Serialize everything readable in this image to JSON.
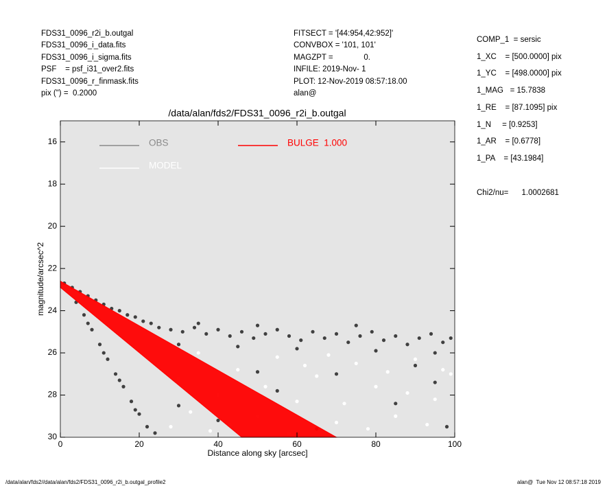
{
  "header": {
    "left": [
      "FDS31_0096_r2i_b.outgal",
      "FDS31_0096_i_data.fits",
      "FDS31_0096_i_sigma.fits",
      "PSF    = psf_i31_over2.fits",
      "FDS31_0096_r_finmask.fits",
      "pix (\") =  0.2000"
    ],
    "middle": [
      "FITSECT = '[44:954,42:952]'",
      "CONVBOX = '101, 101'",
      "MAGZPT =              0.",
      "INFILE: 2019-Nov- 1",
      "PLOT: 12-Nov-2019 08:57:18.00",
      "alan@"
    ],
    "right": [
      "COMP_1  = sersic",
      "1_XC    = [500.0000] pix",
      "1_YC    = [498.0000] pix",
      "1_MAG   = 15.7838",
      "1_RE    = [87.1095] pix",
      "1_N     = [0.9253]",
      "1_AR    = [0.6778]",
      "1_PA    = [43.1984]"
    ],
    "chi2": "Chi2/nu=      1.0002681"
  },
  "footer": {
    "left": "/data/alan/fds2//data/alan/fds2/FDS31_0096_r2i_b.outgal_profile2",
    "right": "alan@  Tue Nov 12 08:57:18 2019"
  },
  "chart_data": {
    "type": "scatter",
    "title": "/data/alan/fds2/FDS31_0096_r2i_b.outgal",
    "x_label": "Distance along sky [arcsec]",
    "y_label": "magnitude/arcsec^2",
    "xlim": [
      0,
      100
    ],
    "ylim": [
      15,
      30
    ],
    "xticks": [
      0,
      20,
      40,
      60,
      80,
      100
    ],
    "yticks": [
      16,
      18,
      20,
      22,
      24,
      26,
      28,
      30
    ],
    "background": "#e5e5e5",
    "legend": "upper left",
    "series": [
      {
        "name": "OBS",
        "color": "#404040",
        "legend_color": "#8a8a8a",
        "kind": "points",
        "x": [
          1,
          3,
          5,
          7,
          9,
          11,
          13,
          15,
          17,
          19,
          21,
          23,
          25,
          28,
          31,
          34,
          37,
          40,
          43,
          46,
          49,
          52,
          55,
          58,
          61,
          64,
          67,
          70,
          73,
          76,
          79,
          82,
          85,
          88,
          91,
          94,
          97,
          99,
          30,
          45,
          60,
          80,
          95,
          35,
          50,
          75,
          4,
          6,
          8,
          10,
          12,
          14,
          16,
          18,
          20,
          22,
          24,
          7,
          11,
          15,
          19,
          30,
          40,
          55,
          70,
          85,
          95,
          98,
          65,
          50,
          90
        ],
        "values": [
          22.7,
          22.9,
          23.1,
          23.3,
          23.5,
          23.7,
          23.9,
          24.0,
          24.2,
          24.3,
          24.5,
          24.6,
          24.8,
          24.9,
          25.0,
          24.8,
          25.1,
          24.9,
          25.2,
          25.0,
          25.3,
          25.1,
          24.9,
          25.2,
          25.4,
          25.0,
          25.3,
          25.1,
          25.5,
          25.2,
          25.0,
          25.4,
          25.2,
          25.6,
          25.3,
          25.1,
          25.5,
          25.3,
          25.6,
          25.7,
          25.8,
          25.9,
          26.0,
          24.6,
          24.7,
          24.7,
          23.6,
          24.2,
          24.9,
          25.6,
          26.3,
          27.0,
          27.6,
          28.3,
          28.9,
          29.5,
          29.8,
          24.6,
          26.0,
          27.3,
          28.7,
          28.5,
          29.2,
          27.8,
          27.0,
          28.4,
          27.4,
          29.5,
          29.6,
          26.9,
          26.6
        ]
      },
      {
        "name": "MODEL",
        "color": "#ffffff",
        "legend_color": "#ffffff",
        "kind": "points",
        "x": [
          25,
          30,
          35,
          40,
          45,
          50,
          55,
          60,
          65,
          70,
          75,
          80,
          85,
          90,
          95,
          99,
          28,
          38,
          52,
          62,
          72,
          78,
          88,
          93,
          97,
          33,
          43,
          58,
          68,
          83
        ],
        "values": [
          26.5,
          27.2,
          26.0,
          28.0,
          26.8,
          29.0,
          26.2,
          28.3,
          27.1,
          29.3,
          26.5,
          27.6,
          29.0,
          26.3,
          28.2,
          27.0,
          29.5,
          29.7,
          27.6,
          26.6,
          28.4,
          29.6,
          27.9,
          29.4,
          26.8,
          28.8,
          29.4,
          29.8,
          26.1,
          26.9
        ]
      },
      {
        "name": "BULGE  1.000",
        "color": "#ff0000",
        "legend_color": "#ff0000",
        "kind": "area",
        "x": [
          0,
          70,
          46,
          0
        ],
        "values": [
          22.6,
          30,
          30,
          22.9
        ]
      }
    ]
  }
}
